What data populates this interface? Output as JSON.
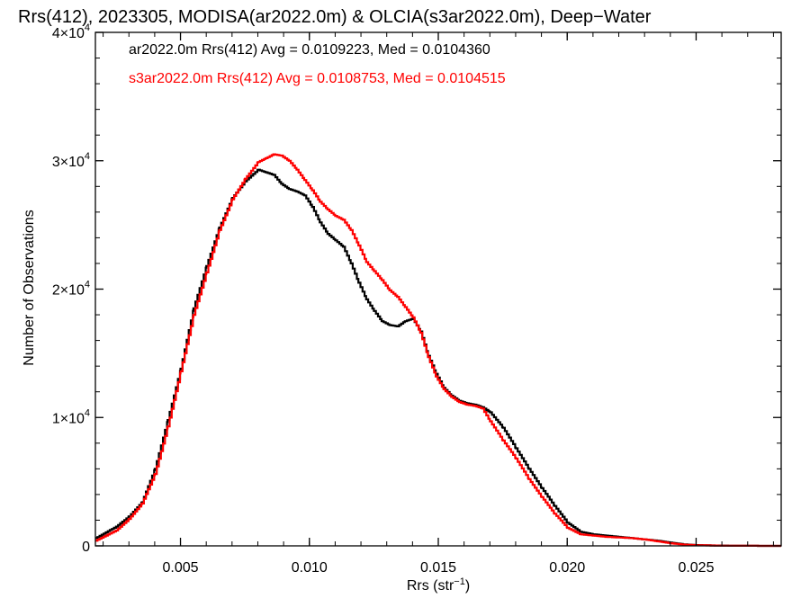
{
  "chart_data": {
    "type": "line",
    "title": "Rrs(412), 2023305, MODISA(ar2022.0m) & OLCIA(s3ar2022.0m), Deep−Water",
    "xlabel": "Rrs (str⁻¹)",
    "ylabel": "Number of Observations",
    "xlim": [
      0.0017,
      0.0283
    ],
    "ylim": [
      0,
      40000
    ],
    "grid": false,
    "legend_position": "top-left",
    "x_ticks": [
      {
        "value": 0.005,
        "label": "0.005"
      },
      {
        "value": 0.01,
        "label": "0.010"
      },
      {
        "value": 0.015,
        "label": "0.015"
      },
      {
        "value": 0.02,
        "label": "0.020"
      },
      {
        "value": 0.025,
        "label": "0.025"
      }
    ],
    "y_ticks": [
      {
        "value": 0,
        "label": "0",
        "exp": ""
      },
      {
        "value": 10000,
        "label": "1×10",
        "exp": "4"
      },
      {
        "value": 20000,
        "label": "2×10",
        "exp": "4"
      },
      {
        "value": 30000,
        "label": "3×10",
        "exp": "4"
      },
      {
        "value": 40000,
        "label": "4×10",
        "exp": "4"
      }
    ],
    "series": [
      {
        "name": "ar2022.0m Rrs(412)",
        "legend_text": "ar2022.0m Rrs(412) Avg = 0.0109223, Med = 0.0104360",
        "color": "#000000",
        "x": [
          0.0017,
          0.0025,
          0.003,
          0.0035,
          0.004,
          0.0045,
          0.005,
          0.0055,
          0.006,
          0.0065,
          0.007,
          0.0075,
          0.008,
          0.0083,
          0.0086,
          0.0089,
          0.0092,
          0.0095,
          0.0098,
          0.0101,
          0.0104,
          0.0107,
          0.011,
          0.0113,
          0.0116,
          0.0119,
          0.0122,
          0.0125,
          0.0128,
          0.0131,
          0.0134,
          0.0137,
          0.014,
          0.0143,
          0.0146,
          0.0149,
          0.0152,
          0.0155,
          0.0158,
          0.0161,
          0.0164,
          0.0167,
          0.017,
          0.0175,
          0.018,
          0.0185,
          0.019,
          0.0195,
          0.02,
          0.0205,
          0.021,
          0.0215,
          0.022,
          0.0225,
          0.023,
          0.0235,
          0.024,
          0.0245,
          0.025,
          0.026,
          0.027,
          0.0283
        ],
        "y": [
          600,
          1500,
          2300,
          3400,
          6000,
          9800,
          13800,
          18500,
          21800,
          24800,
          27100,
          28400,
          29300,
          29100,
          28900,
          28200,
          27800,
          27600,
          27300,
          26400,
          25200,
          24300,
          23800,
          23300,
          22000,
          20500,
          19200,
          18300,
          17500,
          17200,
          17100,
          17500,
          17700,
          16700,
          14800,
          13400,
          12300,
          11700,
          11300,
          11100,
          11000,
          10800,
          10400,
          9200,
          7600,
          6000,
          4500,
          3100,
          1800,
          1100,
          900,
          800,
          700,
          600,
          500,
          400,
          250,
          120,
          60,
          20,
          5,
          0
        ]
      },
      {
        "name": "s3ar2022.0m Rrs(412)",
        "legend_text": "s3ar2022.0m Rrs(412) Avg = 0.0108753, Med = 0.0104515",
        "color": "#ff0000",
        "x": [
          0.0017,
          0.0025,
          0.003,
          0.0035,
          0.004,
          0.0045,
          0.005,
          0.0055,
          0.006,
          0.0065,
          0.007,
          0.0075,
          0.008,
          0.0083,
          0.0086,
          0.0089,
          0.0092,
          0.0095,
          0.0098,
          0.0101,
          0.0104,
          0.0107,
          0.011,
          0.0113,
          0.0116,
          0.0119,
          0.0122,
          0.0125,
          0.0128,
          0.0131,
          0.0134,
          0.0137,
          0.014,
          0.0143,
          0.0146,
          0.0149,
          0.0152,
          0.0155,
          0.0158,
          0.0161,
          0.0164,
          0.0167,
          0.017,
          0.0175,
          0.018,
          0.0185,
          0.019,
          0.0195,
          0.02,
          0.0205,
          0.021,
          0.0215,
          0.022,
          0.0225,
          0.023,
          0.0235,
          0.024,
          0.0245,
          0.025,
          0.026,
          0.027,
          0.0283
        ],
        "y": [
          400,
          1200,
          2100,
          3300,
          5600,
          9300,
          13600,
          18000,
          21300,
          24600,
          27000,
          28600,
          29900,
          30200,
          30500,
          30400,
          30000,
          29300,
          28500,
          27700,
          26800,
          26200,
          25700,
          25400,
          24600,
          23400,
          22100,
          21400,
          20700,
          19900,
          19400,
          18600,
          17800,
          16600,
          14700,
          13200,
          12200,
          11600,
          11200,
          11000,
          10900,
          10700,
          9700,
          8200,
          6800,
          5200,
          3800,
          2500,
          1400,
          900,
          800,
          700,
          650,
          600,
          500,
          350,
          200,
          100,
          50,
          15,
          5,
          0
        ]
      }
    ]
  }
}
